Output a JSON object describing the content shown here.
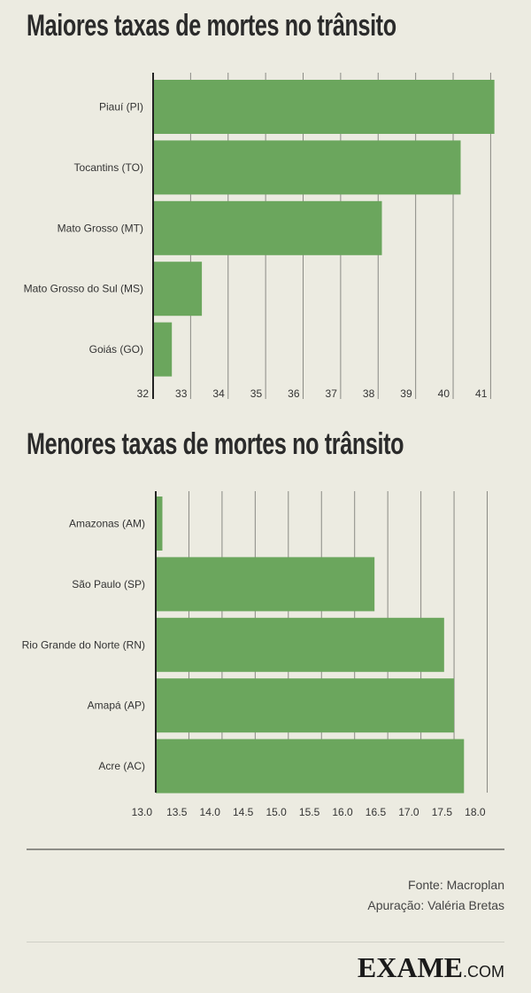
{
  "chart_data": [
    {
      "type": "bar",
      "orientation": "horizontal",
      "title": "Maiores taxas de mortes no trânsito",
      "categories": [
        "Piauí (PI)",
        "Tocantins (TO)",
        "Mato Grosso (MT)",
        "Mato Grosso do Sul (MS)",
        "Goiás (GO)"
      ],
      "values": [
        41.1,
        40.2,
        38.1,
        33.3,
        32.5
      ],
      "xlim": [
        32,
        41.25
      ],
      "ticks": [
        32,
        33,
        34,
        35,
        36,
        37,
        38,
        39,
        40,
        41
      ],
      "tick_labels": [
        "32",
        "33",
        "34",
        "35",
        "36",
        "37",
        "38",
        "39",
        "40",
        "41"
      ],
      "grid": true,
      "bar_color": "#6ba65d"
    },
    {
      "type": "bar",
      "orientation": "horizontal",
      "title": "Menores taxas de mortes no trânsito",
      "categories": [
        "Amazonas (AM)",
        "São Paulo (SP)",
        "Rio Grande do Norte (RN)",
        "Amapá (AP)",
        "Acre (AC)"
      ],
      "values": [
        13.1,
        16.3,
        17.35,
        17.5,
        17.65
      ],
      "xlim": [
        13.0,
        18.1
      ],
      "ticks": [
        13.0,
        13.5,
        14.0,
        14.5,
        15.0,
        15.5,
        16.0,
        16.5,
        17.0,
        17.5,
        18.0
      ],
      "tick_labels": [
        "13.0",
        "13.5",
        "14.0",
        "14.5",
        "15.0",
        "15.5",
        "16.0",
        "16.5",
        "17.0",
        "17.5",
        "18.0"
      ],
      "grid": true,
      "bar_color": "#6ba65d"
    }
  ],
  "footer": {
    "source": "Fonte: Macroplan",
    "credit": "Apuração: Valéria Bretas"
  },
  "logo": {
    "main": "EXAME",
    "suffix": ".COM"
  }
}
